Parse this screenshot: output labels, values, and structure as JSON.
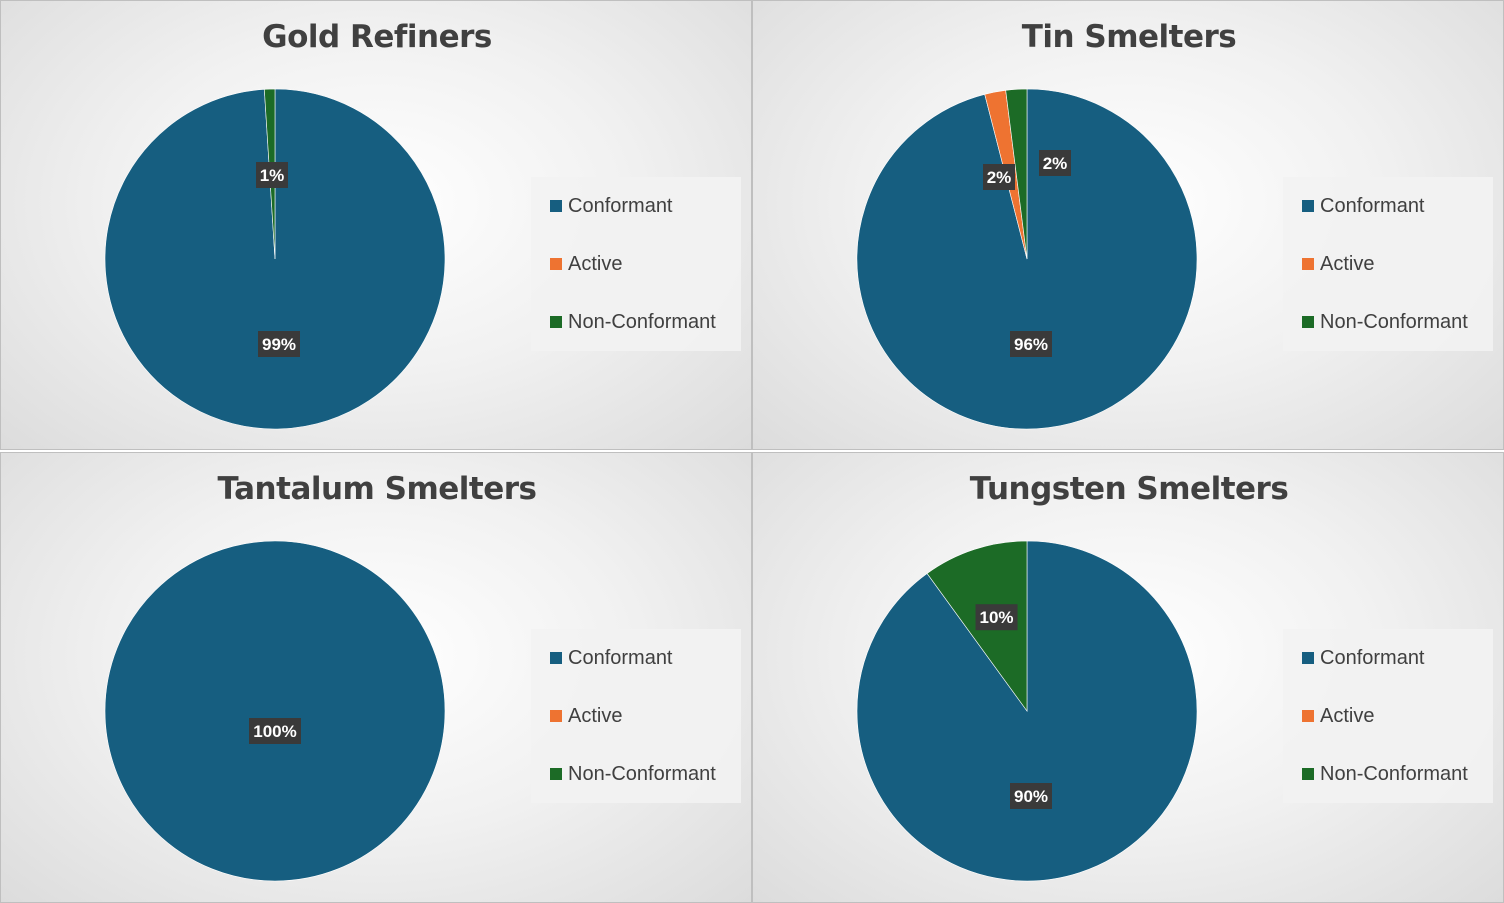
{
  "legend_labels": [
    "Conformant",
    "Active",
    "Non-Conformant"
  ],
  "colors": {
    "Conformant": "#165e80",
    "Active": "#ee7331",
    "Non-Conformant": "#1c6b26"
  },
  "chart_data": [
    {
      "type": "pie",
      "title": "Gold Refiners",
      "categories": [
        "Conformant",
        "Active",
        "Non-Conformant"
      ],
      "values": [
        99,
        0,
        1
      ],
      "labels": [
        "99%",
        "",
        "1%"
      ]
    },
    {
      "type": "pie",
      "title": "Tin Smelters",
      "categories": [
        "Conformant",
        "Active",
        "Non-Conformant"
      ],
      "values": [
        96,
        2,
        2
      ],
      "labels": [
        "96%",
        "2%",
        "2%"
      ]
    },
    {
      "type": "pie",
      "title": "Tantalum Smelters",
      "categories": [
        "Conformant",
        "Active",
        "Non-Conformant"
      ],
      "values": [
        100,
        0,
        0
      ],
      "labels": [
        "100%",
        "",
        ""
      ]
    },
    {
      "type": "pie",
      "title": "Tungsten Smelters",
      "categories": [
        "Conformant",
        "Active",
        "Non-Conformant"
      ],
      "values": [
        90,
        0,
        10
      ],
      "labels": [
        "90%",
        "",
        "10%"
      ]
    }
  ]
}
